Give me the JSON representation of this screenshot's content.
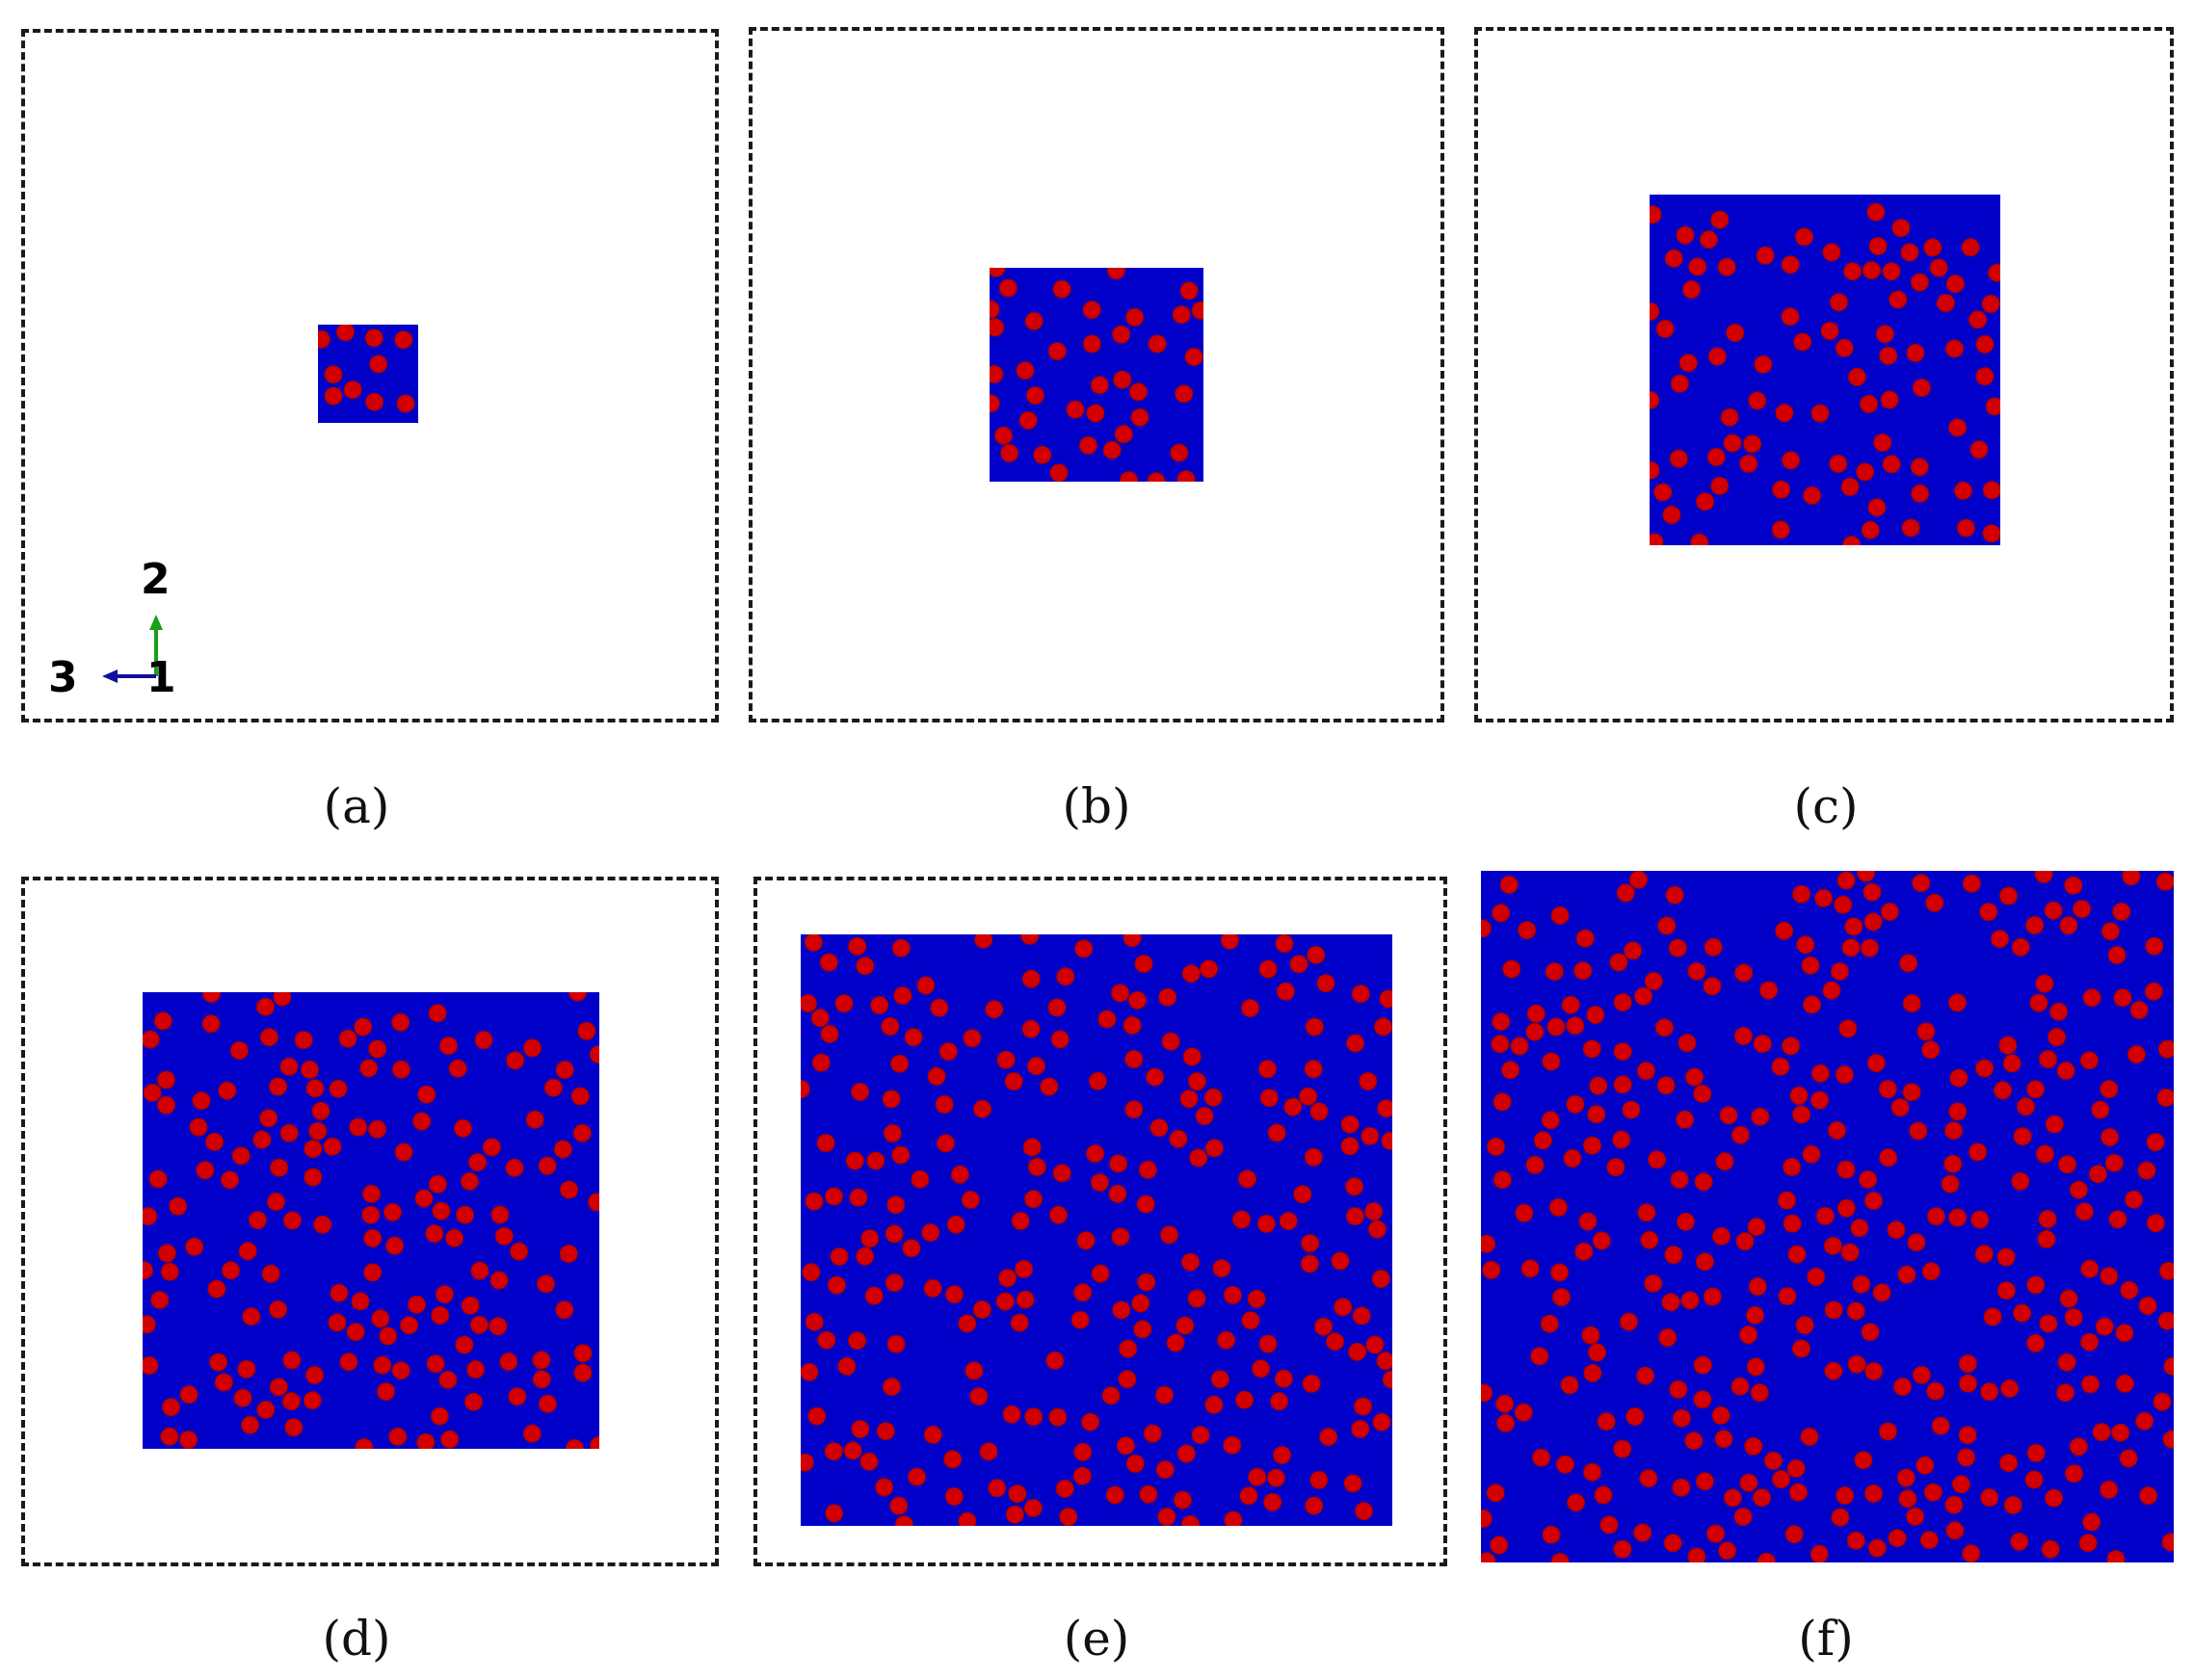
{
  "colors": {
    "matrix": "#0000c8",
    "fiber": "#d20000",
    "fiber_edge": "#a00000",
    "frame": "#1a1a1a",
    "axis_2": "#18a018",
    "axis_3": "#1010a0"
  },
  "axes": {
    "axis_vertical": "2",
    "axis_horizontal": "3",
    "axis_normal": "1"
  },
  "panels": [
    {
      "id": "a",
      "label": "(a)",
      "fibers": 10
    },
    {
      "id": "b",
      "label": "(b)",
      "fibers": 40
    },
    {
      "id": "c",
      "label": "(c)",
      "fibers": 90
    },
    {
      "id": "d",
      "label": "(d)",
      "fibers": 160
    },
    {
      "id": "e",
      "label": "(e)",
      "fibers": 250
    },
    {
      "id": "f",
      "label": "(f)",
      "fibers": 360
    }
  ]
}
